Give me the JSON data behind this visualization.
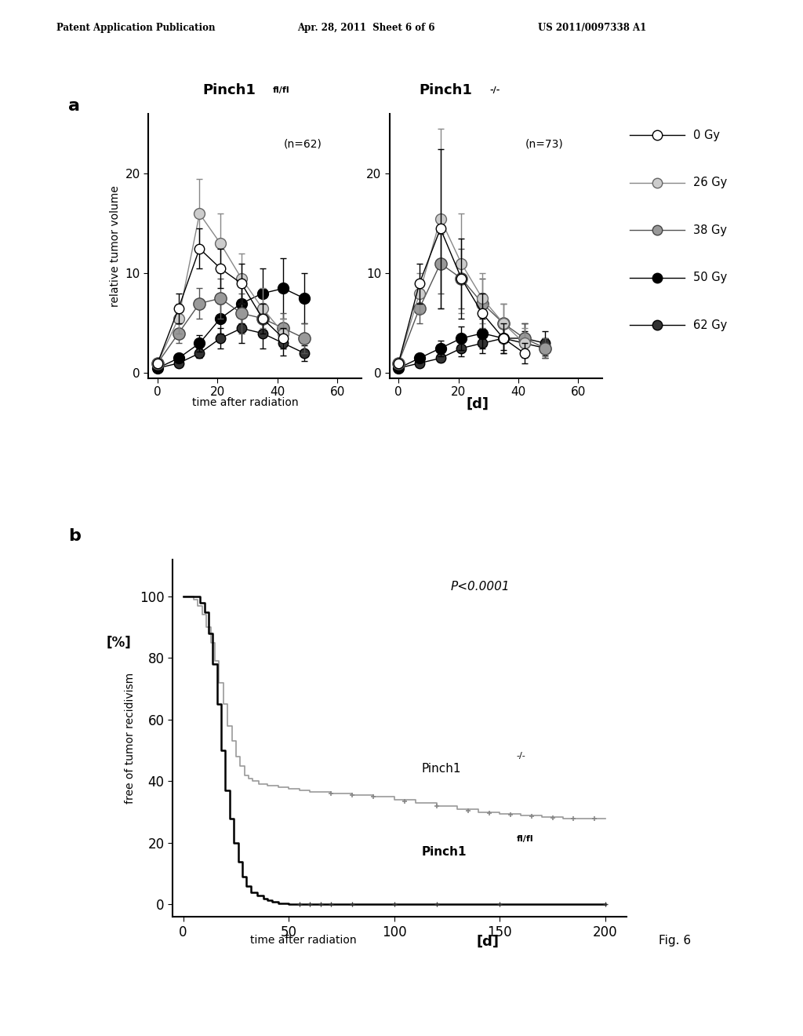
{
  "header_left": "Patent Application Publication",
  "header_mid": "Apr. 28, 2011  Sheet 6 of 6",
  "header_right": "US 2011/0097338 A1",
  "panel_a_label": "a",
  "panel_b_label": "b",
  "fig6_label": "Fig. 6",
  "p_value": "P<0.0001",
  "left_n": "(n=62)",
  "right_n": "(n=73)",
  "ylabel_a": "relative tumor volume",
  "xlabel_a": "time after radiation",
  "xlabel_a_unit": "[d]",
  "ylabel_b": "free of tumor recidivism",
  "ylabel_b2": "[%]",
  "xlabel_b": "time after radiation",
  "xlabel_b_unit": "[d]",
  "bg_color": "#ffffff",
  "series": [
    {
      "label": "0 Gy",
      "line_color": "#000000",
      "mfc": "#ffffff",
      "mec": "#000000",
      "ms": 9,
      "lw": 1.0
    },
    {
      "label": "26 Gy",
      "line_color": "#888888",
      "mfc": "#cccccc",
      "mec": "#666666",
      "ms": 10,
      "lw": 1.0
    },
    {
      "label": "38 Gy",
      "line_color": "#555555",
      "mfc": "#999999",
      "mec": "#444444",
      "ms": 11,
      "lw": 1.0
    },
    {
      "label": "50 Gy",
      "line_color": "#000000",
      "mfc": "#000000",
      "mec": "#000000",
      "ms": 10,
      "lw": 1.0
    },
    {
      "label": "62 Gy",
      "line_color": "#000000",
      "mfc": "#333333",
      "mec": "#000000",
      "ms": 9,
      "lw": 1.0
    }
  ],
  "left_data": [
    {
      "x": [
        0,
        7,
        14,
        21,
        28,
        35,
        42
      ],
      "y": [
        1.0,
        6.5,
        12.5,
        10.5,
        9.0,
        5.5,
        3.5
      ],
      "yerr": [
        0.2,
        1.5,
        2.0,
        2.0,
        2.0,
        1.5,
        1.0
      ]
    },
    {
      "x": [
        0,
        7,
        14,
        21,
        28,
        35,
        42
      ],
      "y": [
        1.0,
        5.5,
        16.0,
        13.0,
        9.5,
        6.5,
        4.0
      ],
      "yerr": [
        0.2,
        1.5,
        3.5,
        3.0,
        2.5,
        2.0,
        1.5
      ]
    },
    {
      "x": [
        0,
        7,
        14,
        21,
        28,
        35,
        42,
        49
      ],
      "y": [
        1.0,
        4.0,
        7.0,
        7.5,
        6.0,
        5.5,
        4.5,
        3.5
      ],
      "yerr": [
        0.2,
        1.0,
        1.5,
        2.0,
        2.0,
        1.5,
        1.5,
        1.5
      ]
    },
    {
      "x": [
        0,
        7,
        14,
        21,
        28,
        35,
        42,
        49
      ],
      "y": [
        0.5,
        1.5,
        3.0,
        5.5,
        7.0,
        8.0,
        8.5,
        7.5
      ],
      "yerr": [
        0.1,
        0.3,
        0.8,
        1.5,
        2.0,
        2.5,
        3.0,
        2.5
      ]
    },
    {
      "x": [
        0,
        7,
        14,
        21,
        28,
        35,
        42,
        49
      ],
      "y": [
        0.5,
        1.0,
        2.0,
        3.5,
        4.5,
        4.0,
        3.0,
        2.0
      ],
      "yerr": [
        0.1,
        0.2,
        0.5,
        1.0,
        1.5,
        1.5,
        1.2,
        0.8
      ]
    }
  ],
  "right_data": [
    {
      "x": [
        0,
        7,
        14,
        21,
        28,
        35,
        42
      ],
      "y": [
        1.0,
        9.0,
        14.5,
        9.5,
        6.0,
        3.5,
        2.0
      ],
      "yerr": [
        0.2,
        2.0,
        8.0,
        4.0,
        2.0,
        1.5,
        1.0
      ]
    },
    {
      "x": [
        0,
        7,
        14,
        21,
        28,
        35,
        42
      ],
      "y": [
        1.0,
        8.0,
        15.5,
        11.0,
        7.5,
        5.0,
        3.0
      ],
      "yerr": [
        0.2,
        2.0,
        9.0,
        5.0,
        2.5,
        2.0,
        1.5
      ]
    },
    {
      "x": [
        0,
        7,
        14,
        21,
        28,
        35,
        42,
        49
      ],
      "y": [
        1.0,
        6.5,
        11.0,
        9.5,
        7.0,
        5.0,
        3.5,
        2.5
      ],
      "yerr": [
        0.2,
        1.5,
        3.0,
        3.0,
        2.5,
        2.0,
        1.5,
        1.0
      ]
    },
    {
      "x": [
        0,
        7,
        14,
        21,
        28,
        35,
        42,
        49
      ],
      "y": [
        0.5,
        1.5,
        2.5,
        3.5,
        4.0,
        3.5,
        3.0,
        2.5
      ],
      "yerr": [
        0.1,
        0.3,
        0.8,
        1.2,
        1.5,
        1.5,
        1.2,
        1.0
      ]
    },
    {
      "x": [
        0,
        7,
        14,
        21,
        28,
        35,
        42,
        49
      ],
      "y": [
        0.5,
        1.0,
        1.5,
        2.5,
        3.0,
        3.5,
        3.5,
        3.0
      ],
      "yerr": [
        0.1,
        0.2,
        0.4,
        0.8,
        1.0,
        1.2,
        1.5,
        1.2
      ]
    }
  ],
  "km_flfl_x": [
    0,
    5,
    8,
    10,
    12,
    14,
    16,
    18,
    20,
    22,
    24,
    26,
    28,
    30,
    32,
    35,
    38,
    40,
    42,
    45,
    48,
    50,
    55,
    200
  ],
  "km_flfl_y": [
    100,
    100,
    98,
    95,
    88,
    78,
    65,
    50,
    37,
    28,
    20,
    14,
    9,
    6,
    4,
    3,
    2,
    1.5,
    1,
    0.5,
    0.5,
    0,
    0,
    0
  ],
  "km_ko_x": [
    0,
    3,
    5,
    7,
    9,
    11,
    13,
    15,
    17,
    19,
    21,
    23,
    25,
    27,
    29,
    31,
    33,
    36,
    40,
    45,
    50,
    55,
    60,
    70,
    80,
    90,
    100,
    110,
    120,
    130,
    140,
    150,
    160,
    170,
    180,
    190,
    200
  ],
  "km_ko_y": [
    100,
    100,
    99,
    97,
    94,
    90,
    85,
    79,
    72,
    65,
    58,
    53,
    48,
    45,
    42,
    41,
    40,
    39,
    38.5,
    38,
    37.5,
    37,
    36.5,
    36,
    35.5,
    35,
    34,
    33,
    32,
    31,
    30,
    29.5,
    29,
    28.5,
    28,
    28,
    28
  ],
  "censor_ko_x": [
    70,
    80,
    90,
    105,
    120,
    135,
    145,
    155,
    165,
    175,
    185,
    195
  ],
  "censor_flfl_x": [
    55,
    60,
    65,
    70,
    80,
    100,
    120,
    150,
    200
  ]
}
